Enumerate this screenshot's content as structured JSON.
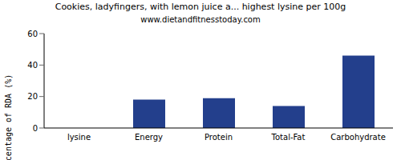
{
  "chart_data": {
    "type": "bar",
    "title": "Cookies, ladyfingers, with lemon juice a... highest lysine per 100g",
    "subtitle": "www.dietandfitnesstoday.com",
    "y_label": "Percentage of RDA (%)",
    "categories": [
      "lysine",
      "Energy",
      "Protein",
      "Total-Fat",
      "Carbohydrate"
    ],
    "values": [
      0,
      18,
      19,
      14,
      46
    ],
    "color": "#233f8c",
    "ylim": [
      0,
      60
    ],
    "yticks": [
      0,
      20,
      40,
      60
    ],
    "grid": false
  }
}
